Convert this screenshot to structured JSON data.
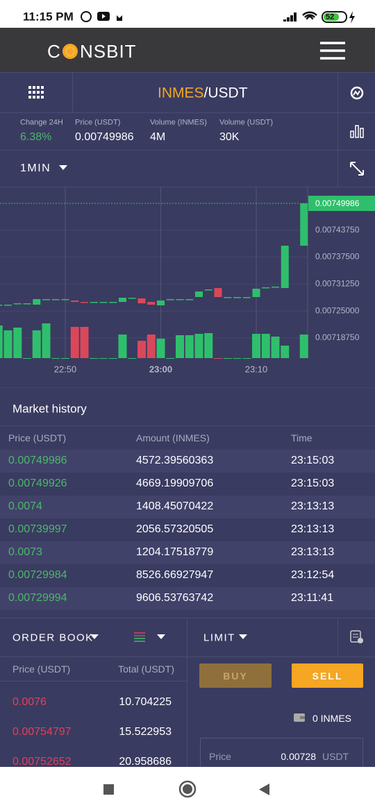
{
  "status_bar": {
    "time": "11:15 PM",
    "battery": "52"
  },
  "header": {
    "logo_start": "C",
    "logo_end": "NSBIT"
  },
  "pair": {
    "base": "INMES",
    "quote": "/USDT"
  },
  "stats": [
    {
      "label": "Change 24H",
      "value": "6.38%"
    },
    {
      "label": "Price (USDT)",
      "value": "0.00749986"
    },
    {
      "label": "Volume (INMES)",
      "value": "4M"
    },
    {
      "label": "Volume (USDT)",
      "value": "30K"
    }
  ],
  "interval": "1MIN",
  "chart_data": {
    "type": "candlestick",
    "categories": [
      null,
      null,
      null,
      null,
      null,
      null,
      null,
      "22:50",
      null,
      null,
      null,
      null,
      null,
      null,
      null,
      null,
      null,
      "23:00",
      null,
      null,
      null,
      null,
      null,
      null,
      null,
      null,
      null,
      "23:10",
      null,
      null,
      null,
      null,
      null
    ],
    "open": [
      0.0072647,
      0.0072647,
      0.0072679,
      0.0072679,
      0.0072647,
      0.0072776,
      0.0072776,
      0.0072776,
      0.0072744,
      0.0072711,
      0.0072711,
      0.0072711,
      0.0072711,
      0.0072711,
      0.0072808,
      0.0072792,
      0.0072711,
      0.0072631,
      0.0072776,
      0.0072776,
      0.0072776,
      0.0072824,
      0.0073001,
      0.0073033,
      0.0072824,
      0.0072824,
      0.0072824,
      0.0072824,
      0.007305,
      0.0073066,
      0.0073033,
      null,
      0.0074016
    ],
    "close": [
      0.0072647,
      0.0072647,
      0.0072679,
      0.0072679,
      0.0072776,
      0.0072776,
      0.0072776,
      0.0072776,
      0.0072711,
      0.0072695,
      0.0072711,
      0.0072711,
      0.0072711,
      0.0072808,
      0.0072808,
      0.0072679,
      0.0072647,
      0.0072744,
      0.0072776,
      0.0072776,
      0.0072776,
      0.0072953,
      0.0073001,
      0.0072824,
      0.0072824,
      0.0072824,
      0.0072824,
      0.0073017,
      0.007305,
      0.0073066,
      0.0074016,
      null,
      0.00749986
    ],
    "volume": [
      47,
      40,
      44,
      0,
      40,
      50,
      0,
      0,
      45,
      45,
      0,
      0,
      0,
      34,
      0,
      25,
      34,
      28,
      0,
      33,
      33,
      35,
      36,
      0,
      0,
      0,
      0,
      35,
      35,
      31,
      18,
      null,
      34
    ],
    "up_color": "#2fbf6c",
    "down_color": "#d9485a",
    "last_price": 0.00749986,
    "ylim": [
      0.00715,
      0.00755
    ],
    "yticks": [
      {
        "value": 0.0074375,
        "label": "0.00743750"
      },
      {
        "value": 0.007375,
        "label": "0.00737500"
      },
      {
        "value": 0.0073125,
        "label": "0.00731250"
      },
      {
        "value": 0.00725,
        "label": "0.00725000"
      },
      {
        "value": 0.0071875,
        "label": "0.00718750"
      }
    ],
    "grid": true
  },
  "market_history": {
    "title": "Market history",
    "columns": [
      "Price (USDT)",
      "Amount (INMES)",
      "Time"
    ],
    "rows": [
      [
        "0.00749986",
        "4572.39560363",
        "23:15:03"
      ],
      [
        "0.00749926",
        "4669.19909706",
        "23:15:03"
      ],
      [
        "0.0074",
        "1408.45070422",
        "23:13:13"
      ],
      [
        "0.00739997",
        "2056.57320505",
        "23:13:13"
      ],
      [
        "0.0073",
        "1204.17518779",
        "23:13:13"
      ],
      [
        "0.00729984",
        "8526.66927947",
        "23:12:54"
      ],
      [
        "0.00729994",
        "9606.53763742",
        "23:11:41"
      ]
    ]
  },
  "order_book": {
    "title": "ORDER BOOK",
    "columns": [
      "Price (USDT)",
      "Total (USDT)"
    ],
    "rows": [
      [
        "0.0076",
        "10.704225"
      ],
      [
        "0.00754797",
        "15.522953"
      ],
      [
        "0.00752652",
        "20.958686"
      ]
    ]
  },
  "trade": {
    "order_type": "LIMIT",
    "buy": "BUY",
    "sell": "SELL",
    "balance": "0 INMES",
    "price_label": "Price",
    "price_value": "0.00728",
    "price_unit": "USDT"
  }
}
